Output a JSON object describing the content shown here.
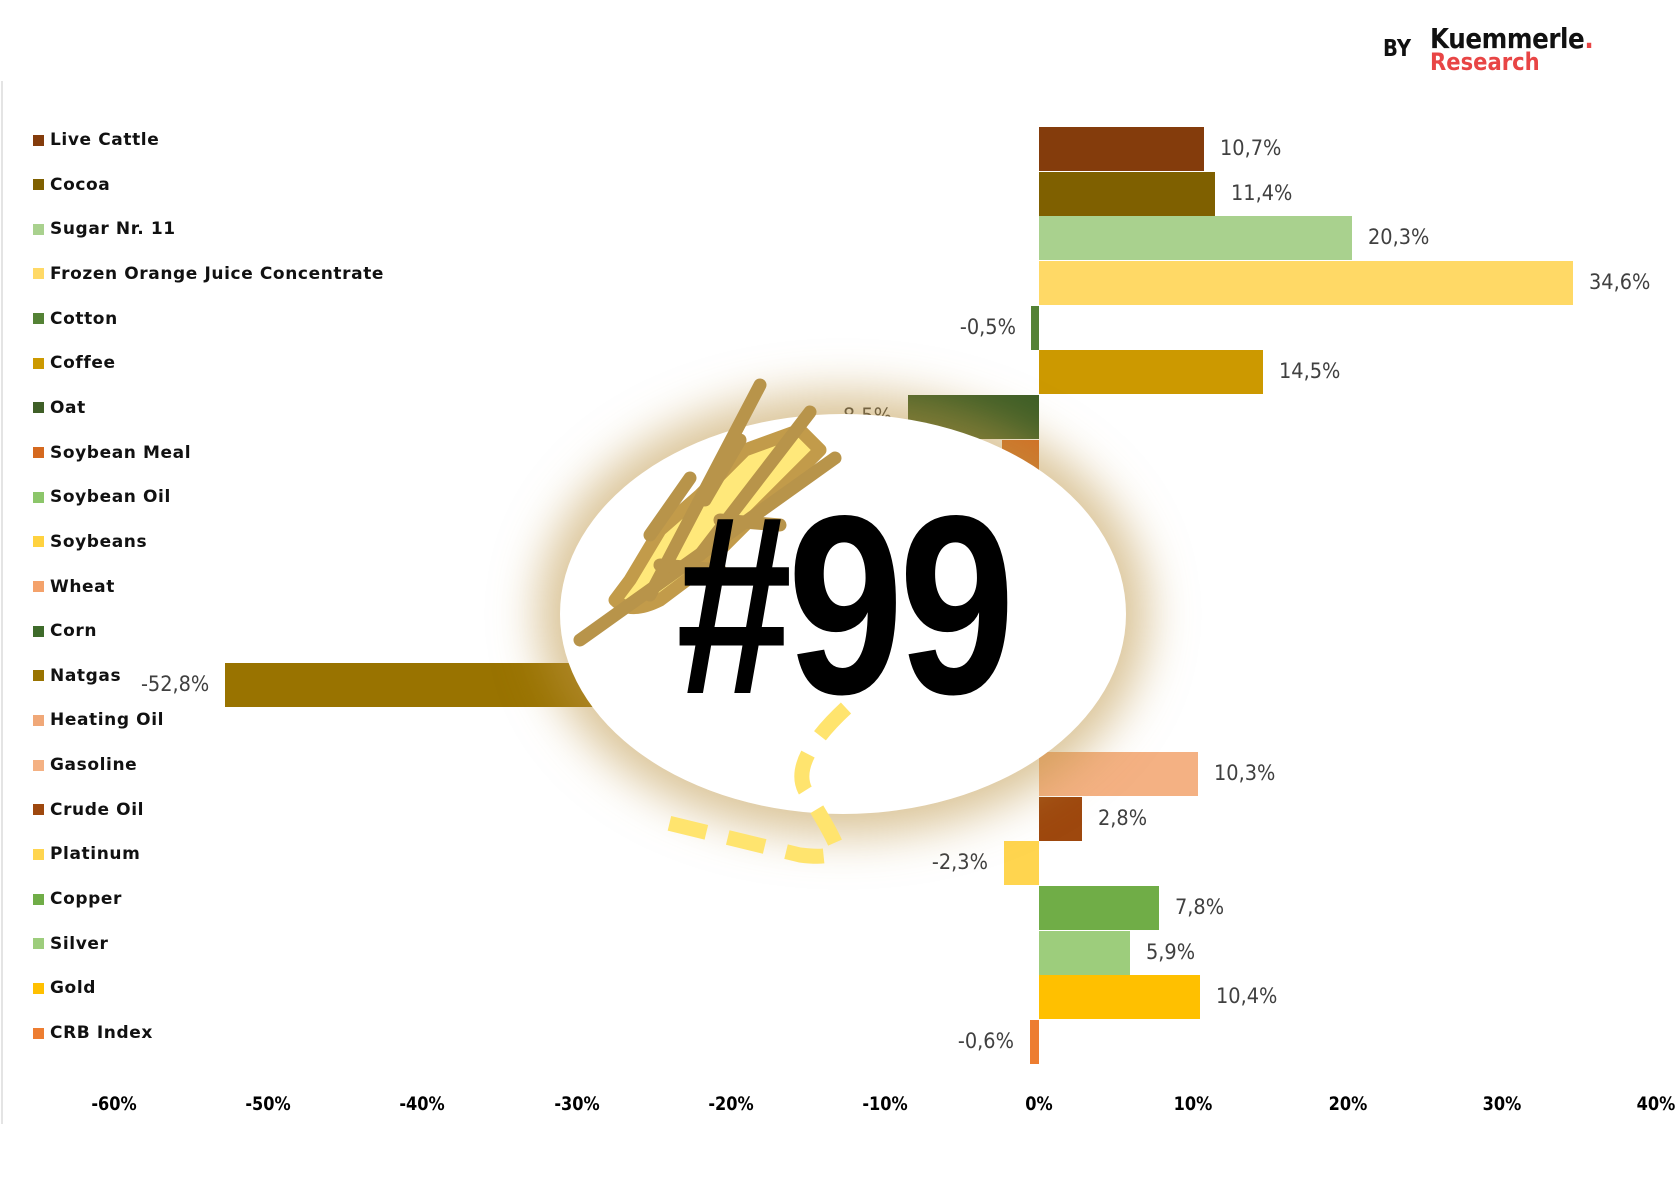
{
  "branding": {
    "by": "BY",
    "name": "Kuemmerle",
    "dot": ".",
    "sub": "Research",
    "accent": "#e84545"
  },
  "badge": {
    "text": "#99",
    "icon": "wheat-icon"
  },
  "chart_data": {
    "type": "bar",
    "orientation": "horizontal",
    "categories": [
      "Live Cattle",
      "Cocoa",
      "Sugar Nr. 11",
      "Frozen Orange Juice Concentrate",
      "Cotton",
      "Coffee",
      "Oat",
      "Soybean Meal",
      "Soybean Oil",
      "Soybeans",
      "Wheat",
      "Corn",
      "Natgas",
      "Heating Oil",
      "Gasoline",
      "Crude Oil",
      "Platinum",
      "Copper",
      "Silver",
      "Gold",
      "CRB Index"
    ],
    "values": [
      10.7,
      11.4,
      20.3,
      34.6,
      -0.5,
      14.5,
      -8.5,
      -2.4,
      null,
      null,
      null,
      null,
      -52.8,
      null,
      10.3,
      2.8,
      -2.3,
      7.8,
      5.9,
      10.4,
      -0.6
    ],
    "labels": [
      "10,7%",
      "11,4%",
      "20,3%",
      "34,6%",
      "-0,5%",
      "14,5%",
      "-8,5%",
      null,
      null,
      null,
      null,
      null,
      "-52,8%",
      null,
      "10,3%",
      "2,8%",
      "-2,3%",
      "7,8%",
      "5,9%",
      "10,4%",
      "-0,6%"
    ],
    "colors": [
      "#843c0c",
      "#7f6000",
      "#a9d18e",
      "#ffd966",
      "#548235",
      "#cc9900",
      "#3f5f27",
      "#d5691f",
      "#8cc66a",
      "#ffd23f",
      "#f4a26b",
      "#3e6b2a",
      "#997300",
      "#f0a878",
      "#f4b183",
      "#9e480e",
      "#ffd54f",
      "#70ad47",
      "#9dcd7c",
      "#ffc000",
      "#ed7d31"
    ],
    "xlim": [
      -60,
      40
    ],
    "xticks": [
      "-60%",
      "-50%",
      "-40%",
      "-30%",
      "-20%",
      "-10%",
      "0%",
      "10%",
      "20%",
      "30%",
      "40%"
    ],
    "grid": false,
    "legend": "left"
  }
}
